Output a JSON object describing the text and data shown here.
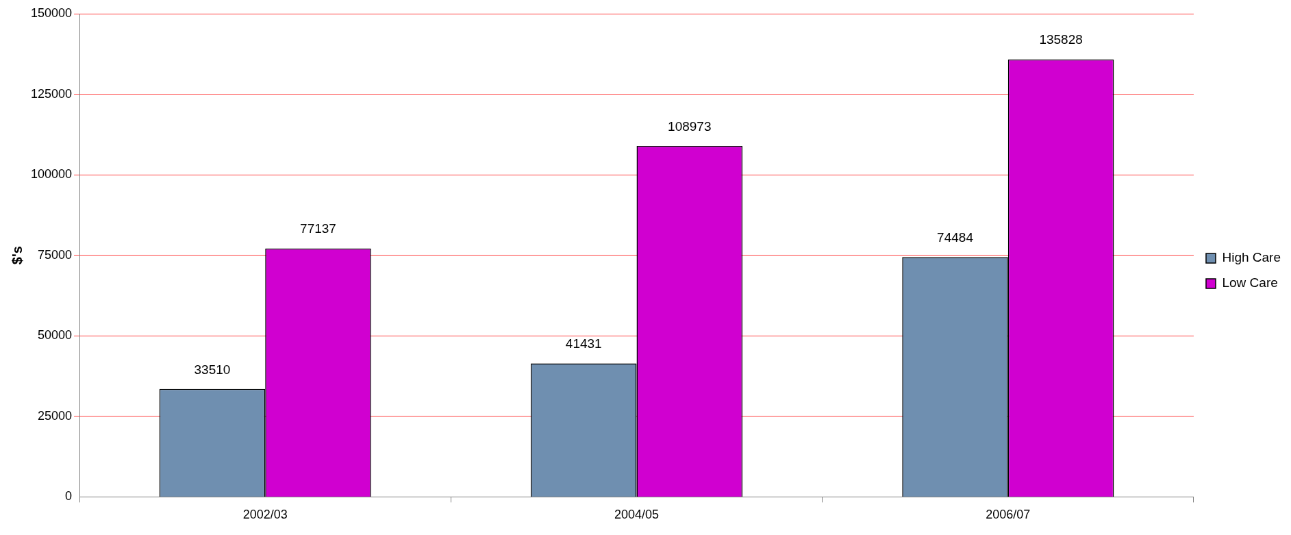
{
  "chart_data": {
    "type": "bar",
    "ylabel": "$'s",
    "categories": [
      "2002/03",
      "2004/05",
      "2006/07"
    ],
    "series": [
      {
        "name": "High Care",
        "color": "#6f8fb0",
        "values": [
          33510,
          41431,
          74484
        ]
      },
      {
        "name": "Low Care",
        "color": "#d000d0",
        "values": [
          77137,
          108973,
          135828
        ]
      }
    ],
    "ylim": [
      0,
      150000
    ],
    "yticks": [
      0,
      25000,
      50000,
      75000,
      100000,
      125000,
      150000
    ],
    "grid": "y",
    "legend": "right",
    "data_labels": true
  }
}
